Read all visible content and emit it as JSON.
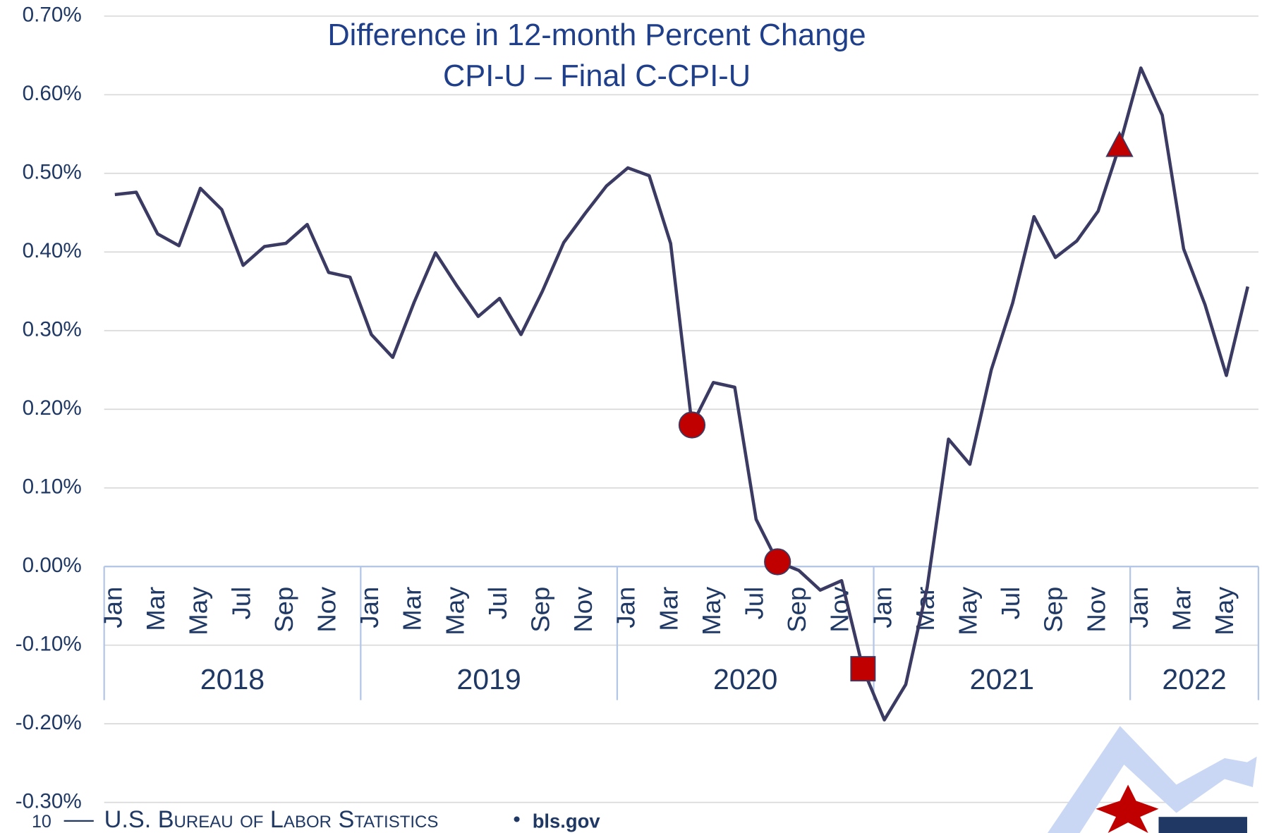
{
  "chart_data": {
    "type": "line",
    "title": [
      "Difference in 12-month Percent Change",
      "CPI-U – Final C-CPI-U"
    ],
    "categories": [
      "Jan",
      null,
      "Mar",
      null,
      "May",
      null,
      "Jul",
      null,
      "Sep",
      null,
      "Nov",
      null,
      "Jan",
      null,
      "Mar",
      null,
      "May",
      null,
      "Jul",
      null,
      "Sep",
      null,
      "Nov",
      null,
      "Jan",
      null,
      "Mar",
      null,
      "May",
      null,
      "Jul",
      null,
      "Sep",
      null,
      "Nov",
      null,
      "Jan",
      null,
      "Mar",
      null,
      "May",
      null,
      "Jul",
      null,
      "Sep",
      null,
      "Nov",
      null,
      "Jan",
      null,
      "Mar",
      null,
      "May",
      null
    ],
    "groups": [
      "2018",
      "2019",
      "2020",
      "2021",
      "2022"
    ],
    "series": [
      {
        "color": "#3a3a62",
        "values": [
          0.473,
          0.476,
          0.423,
          0.408,
          0.481,
          0.454,
          0.383,
          0.407,
          0.411,
          0.435,
          0.374,
          0.368,
          0.295,
          0.266,
          0.336,
          0.399,
          0.357,
          0.318,
          0.341,
          0.295,
          0.35,
          0.412,
          0.449,
          0.484,
          0.507,
          0.497,
          0.411,
          0.18,
          0.234,
          0.228,
          0.06,
          0.006,
          -0.005,
          -0.03,
          -0.018,
          -0.13,
          -0.195,
          -0.15,
          -0.027,
          0.162,
          0.13,
          0.25,
          0.335,
          0.445,
          0.393,
          0.414,
          0.452,
          0.535,
          0.634,
          0.574,
          0.404,
          0.333,
          0.243,
          0.356
        ]
      },
      {
        "color": "#c00000",
        "marker": "circle",
        "values": [
          null,
          null,
          null,
          null,
          null,
          null,
          null,
          null,
          null,
          null,
          null,
          null,
          null,
          null,
          null,
          null,
          null,
          null,
          null,
          null,
          null,
          null,
          null,
          null,
          null,
          null,
          null,
          0.18,
          null,
          null,
          null,
          0.006,
          null,
          null,
          null,
          null,
          null,
          null,
          null,
          null,
          null,
          null,
          null,
          null,
          null,
          null,
          null,
          null,
          null,
          null,
          null,
          null,
          null,
          null
        ]
      },
      {
        "color": "#c00000",
        "marker": "square",
        "values": [
          null,
          null,
          null,
          null,
          null,
          null,
          null,
          null,
          null,
          null,
          null,
          null,
          null,
          null,
          null,
          null,
          null,
          null,
          null,
          null,
          null,
          null,
          null,
          null,
          null,
          null,
          null,
          null,
          null,
          null,
          null,
          null,
          null,
          null,
          null,
          -0.13,
          null,
          null,
          null,
          null,
          null,
          null,
          null,
          null,
          null,
          null,
          null,
          null,
          null,
          null,
          null,
          null,
          null,
          null
        ]
      },
      {
        "color": "#c00000",
        "marker": "triangle",
        "values": [
          null,
          null,
          null,
          null,
          null,
          null,
          null,
          null,
          null,
          null,
          null,
          null,
          null,
          null,
          null,
          null,
          null,
          null,
          null,
          null,
          null,
          null,
          null,
          null,
          null,
          null,
          null,
          null,
          null,
          null,
          null,
          null,
          null,
          null,
          null,
          null,
          null,
          null,
          null,
          null,
          null,
          null,
          null,
          null,
          null,
          null,
          null,
          0.535,
          null,
          null,
          null,
          null,
          null,
          null
        ]
      }
    ],
    "ylim": [
      -0.3,
      0.7
    ],
    "yticks": [
      {
        "value": -0.3,
        "label": "-0.30%"
      },
      {
        "value": -0.2,
        "label": "-0.20%"
      },
      {
        "value": -0.1,
        "label": "-0.10%"
      },
      {
        "value": 0,
        "label": "0.00%"
      },
      {
        "value": 0.1,
        "label": "0.10%"
      },
      {
        "value": 0.2,
        "label": "0.20%"
      },
      {
        "value": 0.3,
        "label": "0.30%"
      },
      {
        "value": 0.4,
        "label": "0.40%"
      },
      {
        "value": 0.5,
        "label": "0.50%"
      },
      {
        "value": 0.6,
        "label": "0.60%"
      },
      {
        "value": 0.7,
        "label": "0.70%"
      }
    ],
    "grid": true
  },
  "footer": {
    "page": "10",
    "agency": "U.S. Bureau of Labor Statistics",
    "site": "bls.gov"
  }
}
